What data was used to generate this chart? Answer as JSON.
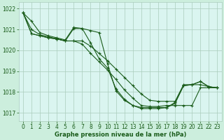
{
  "bg_color": "#cceedd",
  "plot_bg_color": "#daf5f0",
  "grid_color": "#aaccbb",
  "line_color": "#1a5c1a",
  "xlabel_color": "#1a5c1a",
  "title": "Graphe pression niveau de la mer (hPa)",
  "xlim": [
    -0.5,
    23.5
  ],
  "ylim": [
    1016.6,
    1022.3
  ],
  "yticks": [
    1017,
    1018,
    1019,
    1020,
    1021,
    1022
  ],
  "xticks": [
    0,
    1,
    2,
    3,
    4,
    5,
    6,
    7,
    8,
    9,
    10,
    11,
    12,
    13,
    14,
    15,
    16,
    17,
    18,
    19,
    20,
    21,
    22,
    23
  ],
  "series": [
    {
      "x": [
        0,
        1,
        2,
        3,
        4,
        5,
        6,
        7,
        8,
        9,
        10,
        11,
        12,
        13,
        14,
        15,
        16,
        17,
        18,
        19,
        20,
        21,
        22,
        23
      ],
      "y": [
        1021.8,
        1021.4,
        1020.85,
        1020.7,
        1020.6,
        1020.5,
        1021.1,
        1021.05,
        1020.35,
        1019.6,
        1019.15,
        1018.15,
        1017.65,
        1017.35,
        1017.2,
        1017.2,
        1017.2,
        1017.25,
        1017.45,
        1018.3,
        1018.35,
        1018.5,
        1018.25,
        1018.2
      ],
      "marker_x": [
        0,
        1,
        2,
        3,
        4,
        5,
        6,
        7,
        8,
        9,
        10,
        11,
        12,
        13,
        14,
        15,
        16,
        17,
        18,
        19,
        20,
        21,
        22,
        23
      ]
    },
    {
      "x": [
        0,
        1,
        2,
        3,
        4,
        5,
        6,
        7,
        8,
        9,
        10,
        11,
        12,
        13,
        14,
        15,
        16,
        17,
        18,
        19,
        20,
        21,
        22,
        23
      ],
      "y": [
        1021.8,
        1021.0,
        1020.75,
        1020.65,
        1020.55,
        1020.45,
        1020.45,
        1020.3,
        1019.85,
        1019.45,
        1019.05,
        1018.6,
        1018.1,
        1017.7,
        1017.35,
        1017.3,
        1017.3,
        1017.35,
        1017.35,
        1017.35,
        1017.35,
        1018.2,
        1018.2,
        1018.2
      ],
      "marker_x": [
        0,
        1,
        2,
        3,
        4,
        5,
        6,
        7,
        8,
        9,
        10,
        11,
        12,
        13,
        14,
        15,
        16,
        17,
        18,
        19,
        20,
        21,
        22,
        23
      ]
    },
    {
      "x": [
        0,
        1,
        2,
        3,
        4,
        5,
        6,
        7,
        8,
        9,
        10,
        11,
        12,
        13,
        14,
        15,
        16,
        17,
        18,
        19,
        20,
        21,
        22,
        23
      ],
      "y": [
        1021.8,
        1020.8,
        1020.7,
        1020.6,
        1020.55,
        1020.45,
        1020.45,
        1020.45,
        1020.2,
        1019.85,
        1019.5,
        1019.1,
        1018.7,
        1018.3,
        1017.9,
        1017.6,
        1017.55,
        1017.55,
        1017.55,
        1018.35,
        1018.35,
        1018.35,
        1018.25,
        1018.2
      ],
      "marker_x": [
        0,
        1,
        2,
        3,
        4,
        5,
        6,
        7,
        8,
        9,
        10,
        11,
        12,
        13,
        14,
        15,
        16,
        17,
        18,
        19,
        20,
        21,
        22,
        23
      ]
    },
    {
      "x": [
        0,
        1,
        2,
        3,
        4,
        5,
        6,
        7,
        8,
        9,
        10,
        11,
        12,
        13,
        14,
        15,
        16,
        17,
        18,
        19,
        20,
        21,
        22,
        23
      ],
      "y": [
        1021.8,
        1020.8,
        1020.7,
        1020.6,
        1020.55,
        1020.45,
        1021.05,
        1021.05,
        1020.95,
        1020.85,
        1019.35,
        1018.05,
        1017.6,
        1017.35,
        1017.25,
        1017.25,
        1017.25,
        1017.25,
        1017.5,
        1018.3,
        1018.35,
        1018.5,
        1018.25,
        1018.2
      ],
      "marker_x": [
        0,
        1,
        2,
        3,
        4,
        5,
        6,
        7,
        8,
        9,
        10,
        11,
        12,
        13,
        14,
        15,
        16,
        17,
        18,
        19,
        20,
        21,
        22,
        23
      ]
    }
  ]
}
